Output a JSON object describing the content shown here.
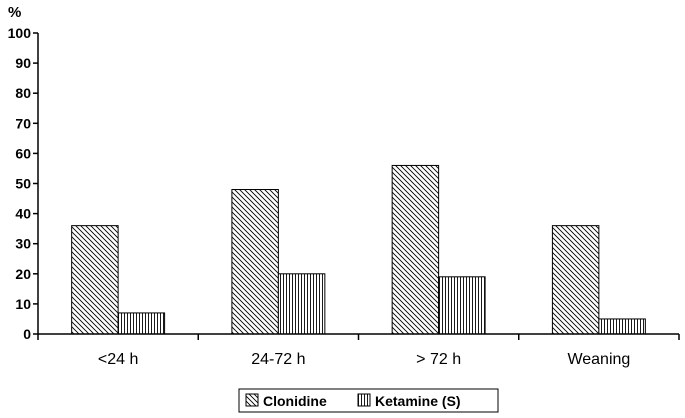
{
  "chart_data": {
    "type": "bar",
    "ylabel": "%",
    "ylim": [
      0,
      100
    ],
    "yticks": [
      0,
      10,
      20,
      30,
      40,
      50,
      60,
      70,
      80,
      90,
      100
    ],
    "categories": [
      "<24 h",
      "24-72 h",
      "> 72 h",
      "Weaning"
    ],
    "series": [
      {
        "name": "Clonidine",
        "values": [
          36,
          48,
          56,
          36
        ],
        "pattern": "diagonal-hatch"
      },
      {
        "name": "Ketamine (S)",
        "values": [
          7,
          20,
          19,
          5
        ],
        "pattern": "vertical-hatch"
      }
    ],
    "grid": false,
    "legend": "bottom-center"
  }
}
